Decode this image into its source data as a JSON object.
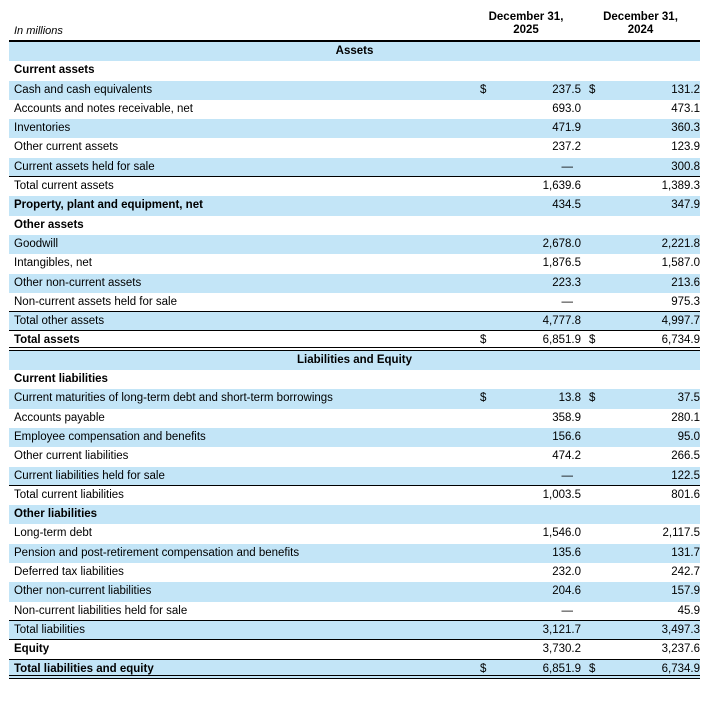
{
  "header": {
    "units_label": "In millions",
    "col_2025": {
      "line1": "December 31,",
      "line2": "2025"
    },
    "col_2024": {
      "line1": "December 31,",
      "line2": "2024"
    }
  },
  "currency_symbol": "$",
  "colors": {
    "row_highlight": "#c3e5f7",
    "rule": "#000000",
    "text": "#000000",
    "background": "#ffffff"
  },
  "rows": [
    {
      "type": "band",
      "label": "Assets"
    },
    {
      "type": "sub",
      "label": "Current assets",
      "shaded": false
    },
    {
      "type": "data",
      "label": "Cash and cash equivalents",
      "dollar": true,
      "v1": "237.5",
      "v2": "131.2",
      "shaded": true
    },
    {
      "type": "data",
      "label": "Accounts and notes receivable, net",
      "v1": "693.0",
      "v2": "473.1",
      "shaded": false
    },
    {
      "type": "data",
      "label": "Inventories",
      "v1": "471.9",
      "v2": "360.3",
      "shaded": true
    },
    {
      "type": "data",
      "label": "Other current assets",
      "v1": "237.2",
      "v2": "123.9",
      "shaded": false
    },
    {
      "type": "data",
      "label": "Current assets held for sale",
      "v1": "—",
      "v2": "300.8",
      "shaded": true,
      "border": "single"
    },
    {
      "type": "data",
      "label": "Total current assets",
      "v1": "1,639.6",
      "v2": "1,389.3",
      "shaded": false
    },
    {
      "type": "data",
      "label": "Property, plant and equipment, net",
      "bold": true,
      "v1": "434.5",
      "v2": "347.9",
      "shaded": true
    },
    {
      "type": "sub",
      "label": "Other assets",
      "shaded": false
    },
    {
      "type": "data",
      "label": "Goodwill",
      "v1": "2,678.0",
      "v2": "2,221.8",
      "shaded": true
    },
    {
      "type": "data",
      "label": "Intangibles, net",
      "v1": "1,876.5",
      "v2": "1,587.0",
      "shaded": false
    },
    {
      "type": "data",
      "label": "Other non-current assets",
      "v1": "223.3",
      "v2": "213.6",
      "shaded": true
    },
    {
      "type": "data",
      "label": "Non-current assets held for sale",
      "v1": "—",
      "v2": "975.3",
      "shaded": false,
      "border": "single"
    },
    {
      "type": "data",
      "label": "Total other assets",
      "v1": "4,777.8",
      "v2": "4,997.7",
      "shaded": true,
      "border": "single"
    },
    {
      "type": "data",
      "label": "Total assets",
      "bold": true,
      "dollar": true,
      "v1": "6,851.9",
      "v2": "6,734.9",
      "shaded": false,
      "border": "double"
    },
    {
      "type": "band",
      "label": "Liabilities and Equity"
    },
    {
      "type": "sub",
      "label": "Current liabilities",
      "shaded": false
    },
    {
      "type": "data",
      "label": "Current maturities of long-term debt and short-term borrowings",
      "dollar": true,
      "v1": "13.8",
      "v2": "37.5",
      "shaded": true
    },
    {
      "type": "data",
      "label": "Accounts payable",
      "v1": "358.9",
      "v2": "280.1",
      "shaded": false
    },
    {
      "type": "data",
      "label": "Employee compensation and benefits",
      "v1": "156.6",
      "v2": "95.0",
      "shaded": true
    },
    {
      "type": "data",
      "label": "Other current liabilities",
      "v1": "474.2",
      "v2": "266.5",
      "shaded": false
    },
    {
      "type": "data",
      "label": "Current liabilities held for sale",
      "v1": "—",
      "v2": "122.5",
      "shaded": true,
      "border": "single"
    },
    {
      "type": "data",
      "label": "Total current liabilities",
      "v1": "1,003.5",
      "v2": "801.6",
      "shaded": false
    },
    {
      "type": "sub",
      "label": "Other liabilities",
      "shaded": true
    },
    {
      "type": "data",
      "label": "Long-term debt",
      "v1": "1,546.0",
      "v2": "2,117.5",
      "shaded": false
    },
    {
      "type": "data",
      "label": "Pension and post-retirement compensation and benefits",
      "v1": "135.6",
      "v2": "131.7",
      "shaded": true
    },
    {
      "type": "data",
      "label": "Deferred tax liabilities",
      "v1": "232.0",
      "v2": "242.7",
      "shaded": false
    },
    {
      "type": "data",
      "label": "Other non-current liabilities",
      "v1": "204.6",
      "v2": "157.9",
      "shaded": true
    },
    {
      "type": "data",
      "label": "Non-current liabilities held for sale",
      "v1": "—",
      "v2": "45.9",
      "shaded": false,
      "border": "single"
    },
    {
      "type": "data",
      "label": "Total liabilities",
      "v1": "3,121.7",
      "v2": "3,497.3",
      "shaded": true,
      "border": "single"
    },
    {
      "type": "data",
      "label": "Equity",
      "bold": true,
      "v1": "3,730.2",
      "v2": "3,237.6",
      "shaded": false,
      "border": "single"
    },
    {
      "type": "data",
      "label": "Total liabilities and equity",
      "bold": true,
      "dollar": true,
      "v1": "6,851.9",
      "v2": "6,734.9",
      "shaded": true,
      "border": "double"
    }
  ]
}
